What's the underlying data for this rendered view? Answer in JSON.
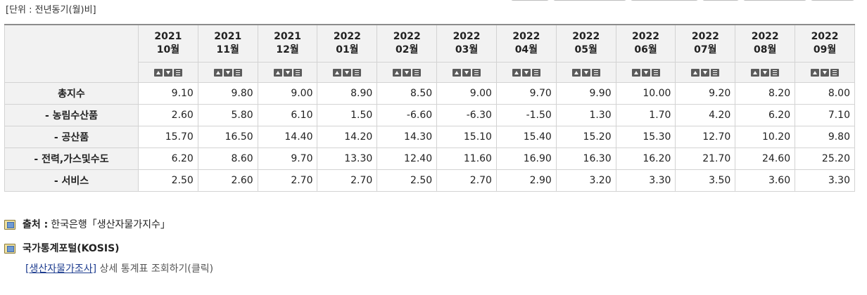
{
  "unit_label": "[단위 : 전년동기(월)비]",
  "columns": [
    {
      "year": "2021",
      "month": "10월"
    },
    {
      "year": "2021",
      "month": "11월"
    },
    {
      "year": "2021",
      "month": "12월"
    },
    {
      "year": "2022",
      "month": "01월"
    },
    {
      "year": "2022",
      "month": "02월"
    },
    {
      "year": "2022",
      "month": "03월"
    },
    {
      "year": "2022",
      "month": "04월"
    },
    {
      "year": "2022",
      "month": "05월"
    },
    {
      "year": "2022",
      "month": "06월"
    },
    {
      "year": "2022",
      "month": "07월"
    },
    {
      "year": "2022",
      "month": "08월"
    },
    {
      "year": "2022",
      "month": "09월"
    }
  ],
  "rows": [
    {
      "label": "총지수",
      "values": [
        "9.10",
        "9.80",
        "9.00",
        "8.90",
        "8.50",
        "9.00",
        "9.70",
        "9.90",
        "10.00",
        "9.20",
        "8.20",
        "8.00"
      ]
    },
    {
      "label": "- 농림수산품",
      "values": [
        "2.60",
        "5.80",
        "6.10",
        "1.50",
        "-6.60",
        "-6.30",
        "-1.50",
        "1.30",
        "1.70",
        "4.20",
        "6.20",
        "7.10"
      ]
    },
    {
      "label": "- 공산품",
      "values": [
        "15.70",
        "16.50",
        "14.40",
        "14.20",
        "14.30",
        "15.10",
        "15.40",
        "15.20",
        "15.30",
        "12.70",
        "10.20",
        "9.80"
      ]
    },
    {
      "label": "- 전력,가스및수도",
      "values": [
        "6.20",
        "8.60",
        "9.70",
        "13.30",
        "12.40",
        "11.60",
        "16.90",
        "16.30",
        "16.20",
        "21.70",
        "24.60",
        "25.20"
      ]
    },
    {
      "label": "- 서비스",
      "values": [
        "2.50",
        "2.60",
        "2.70",
        "2.70",
        "2.50",
        "2.70",
        "2.90",
        "3.20",
        "3.30",
        "3.50",
        "3.60",
        "3.30"
      ]
    }
  ],
  "source": {
    "prefix": "출처 :",
    "text": "한국은행「생산자물가지수」"
  },
  "kosis": {
    "title": "국가통계포털(KOSIS)",
    "link_text": "[생산자물가조사]",
    "link_suffix": "상세 통계표 조회하기(클릭)"
  }
}
